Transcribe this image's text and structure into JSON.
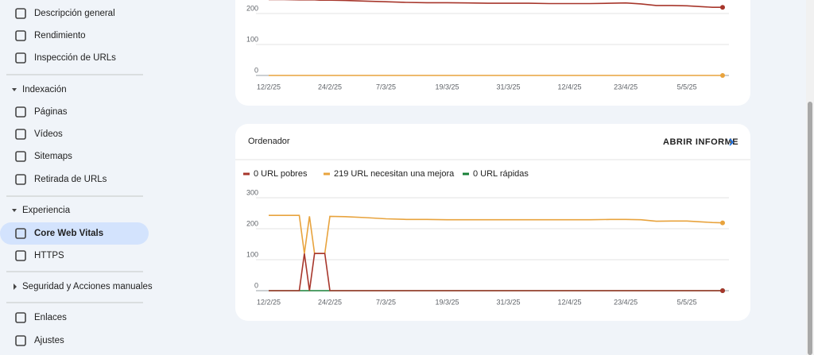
{
  "nav": [
    {
      "label": "Descripción general"
    },
    {
      "label": "Rendimiento"
    },
    {
      "label": "Inspección de URLs"
    },
    {
      "label": "Indexación"
    },
    {
      "label": "Páginas"
    },
    {
      "label": "Vídeos"
    },
    {
      "label": "Sitemaps"
    },
    {
      "label": "Retirada de URLs"
    },
    {
      "label": "Experiencia"
    },
    {
      "label": "Core Web Vitals"
    },
    {
      "label": "HTTPS"
    },
    {
      "label": "Seguridad y Acciones manuales"
    },
    {
      "label": "Enlaces"
    },
    {
      "label": "Ajustes"
    }
  ],
  "chart_data": [
    {
      "type": "line",
      "x": [
        "12/2/25",
        "15/2/25",
        "18/2/25",
        "19/2/25",
        "20/2/25",
        "21/2/25",
        "22/2/25",
        "23/2/25",
        "24/2/25",
        "27/2/25",
        "3/3/25",
        "7/3/25",
        "11/3/25",
        "15/3/25",
        "19/3/25",
        "23/3/25",
        "27/3/25",
        "31/3/25",
        "4/4/25",
        "8/4/25",
        "12/4/25",
        "16/4/25",
        "20/4/25",
        "23/4/25",
        "26/4/25",
        "29/4/25",
        "2/5/25",
        "5/5/25",
        "8/5/25",
        "10/5/25",
        "12/5/25"
      ],
      "series": [
        {
          "color": "#a7362b",
          "values": [
            245,
            245,
            244,
            244,
            244,
            244,
            243,
            243,
            243,
            242,
            240,
            238,
            236,
            235,
            235,
            234,
            233,
            233,
            233,
            232,
            232,
            232,
            233,
            234,
            231,
            226,
            226,
            225,
            222,
            220,
            220
          ]
        },
        {
          "color": "#e8a33d",
          "values": [
            0,
            0,
            0,
            0,
            0,
            0,
            0,
            0,
            0,
            0,
            0,
            0,
            0,
            0,
            0,
            0,
            0,
            0,
            0,
            0,
            0,
            0,
            0,
            0,
            0,
            0,
            0,
            0,
            0,
            0,
            0
          ]
        }
      ],
      "ylim": [
        0,
        250
      ],
      "yticks": [
        0,
        100,
        200
      ],
      "xticks": [
        "12/2/25",
        "24/2/25",
        "7/3/25",
        "19/3/25",
        "31/3/25",
        "12/4/25",
        "23/4/25",
        "5/5/25"
      ],
      "grid": true
    },
    {
      "type": "line",
      "title": "Ordenador",
      "action": "ABRIR INFORME",
      "x": [
        "12/2/25",
        "15/2/25",
        "18/2/25",
        "19/2/25",
        "20/2/25",
        "21/2/25",
        "22/2/25",
        "23/2/25",
        "24/2/25",
        "27/2/25",
        "3/3/25",
        "7/3/25",
        "11/3/25",
        "15/3/25",
        "19/3/25",
        "23/3/25",
        "27/3/25",
        "31/3/25",
        "4/4/25",
        "8/4/25",
        "12/4/25",
        "16/4/25",
        "20/4/25",
        "23/4/25",
        "26/4/25",
        "29/4/25",
        "2/5/25",
        "5/5/25",
        "8/5/25",
        "10/5/25",
        "12/5/25"
      ],
      "series": [
        {
          "name": "0 URL pobres",
          "color": "#a7362b",
          "values": [
            0,
            0,
            0,
            120,
            0,
            120,
            120,
            120,
            0,
            0,
            0,
            0,
            0,
            0,
            0,
            0,
            0,
            0,
            0,
            0,
            0,
            0,
            0,
            0,
            0,
            0,
            0,
            0,
            0,
            0,
            0
          ]
        },
        {
          "name": "219 URL necesitan una mejora",
          "color": "#e8a33d",
          "values": [
            243,
            243,
            243,
            120,
            240,
            120,
            120,
            120,
            240,
            239,
            236,
            232,
            230,
            230,
            229,
            229,
            229,
            229,
            229,
            229,
            229,
            229,
            230,
            230,
            229,
            224,
            225,
            225,
            222,
            220,
            219
          ]
        },
        {
          "name": "0 URL rápidas",
          "color": "#188038",
          "values": [
            0,
            0,
            0,
            0,
            0,
            0,
            0,
            0,
            0,
            0,
            0,
            0,
            0,
            0,
            0,
            0,
            0,
            0,
            0,
            0,
            0,
            0,
            0,
            0,
            0,
            0,
            0,
            0,
            0,
            0,
            0
          ]
        }
      ],
      "ylim": [
        0,
        300
      ],
      "yticks": [
        0,
        100,
        200,
        300
      ],
      "xticks": [
        "12/2/25",
        "24/2/25",
        "7/3/25",
        "19/3/25",
        "31/3/25",
        "12/4/25",
        "23/4/25",
        "5/5/25"
      ],
      "grid": true
    }
  ]
}
